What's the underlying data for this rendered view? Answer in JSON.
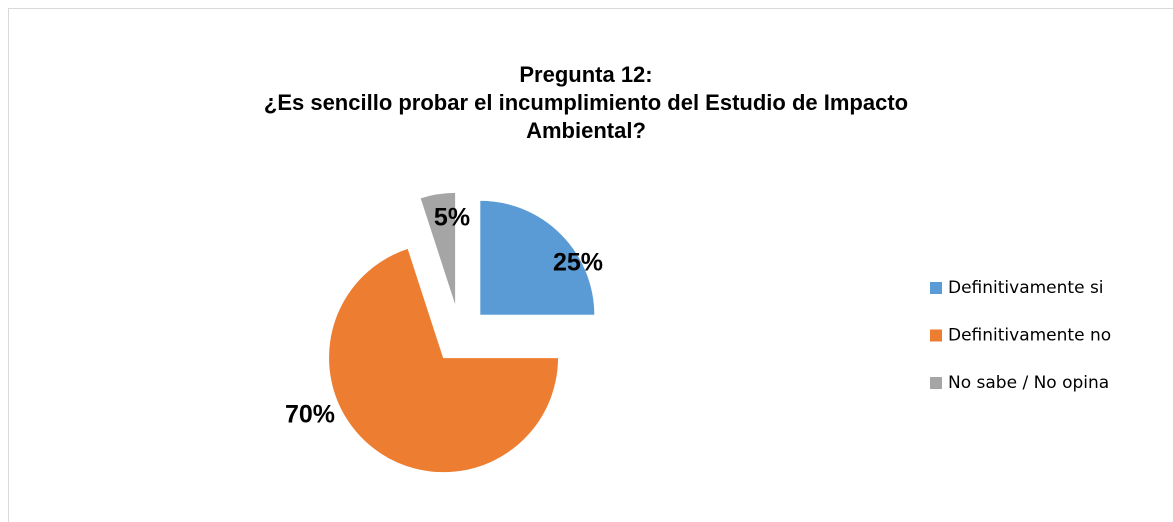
{
  "chart_data": {
    "type": "pie",
    "title": [
      "Pregunta 12:",
      "¿Es sencillo probar el incumplimiento del Estudio de Impacto",
      "Ambiental?"
    ],
    "categories": [
      "Definitivamente si",
      "Definitivamente no",
      "No sabe / No opina"
    ],
    "values": [
      25,
      70,
      5
    ],
    "value_labels": [
      "25%",
      "70%",
      "5%"
    ],
    "colors": [
      "#5b9bd5",
      "#ed7d31",
      "#a5a5a5"
    ],
    "legend": "right"
  }
}
